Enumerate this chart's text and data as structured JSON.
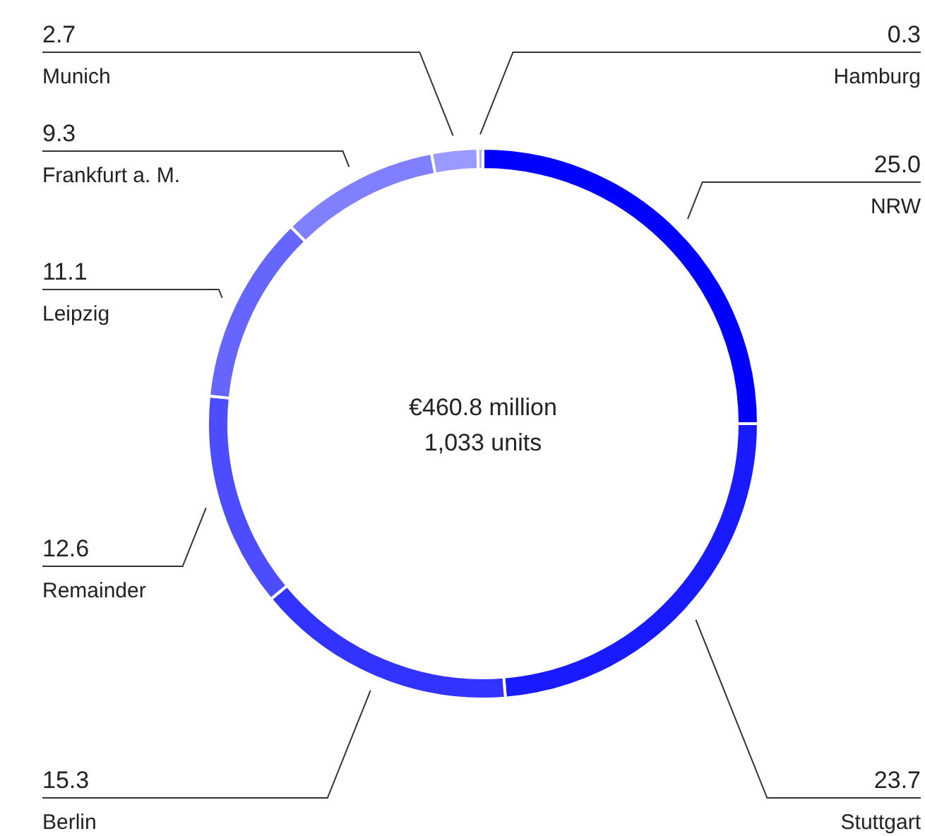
{
  "chart_data": {
    "type": "donut",
    "title": "€460.8 million",
    "subtitle": "1,033 units",
    "categories": [
      "NRW",
      "Stuttgart",
      "Berlin",
      "Remainder",
      "Leipzig",
      "Frankfurt a. M.",
      "Munich",
      "Hamburg"
    ],
    "values": [
      25.0,
      23.7,
      15.3,
      12.6,
      11.1,
      9.3,
      2.7,
      0.3
    ],
    "value_labels": [
      "25.0",
      "23.7",
      "15.3",
      "12.6",
      "11.1",
      "9.3",
      "2.7",
      "0.3"
    ],
    "colors": [
      "#0000ff",
      "#1a1aff",
      "#3333ff",
      "#4d4dff",
      "#6666ff",
      "#8080ff",
      "#9999ff",
      "#b3b3ff"
    ]
  }
}
